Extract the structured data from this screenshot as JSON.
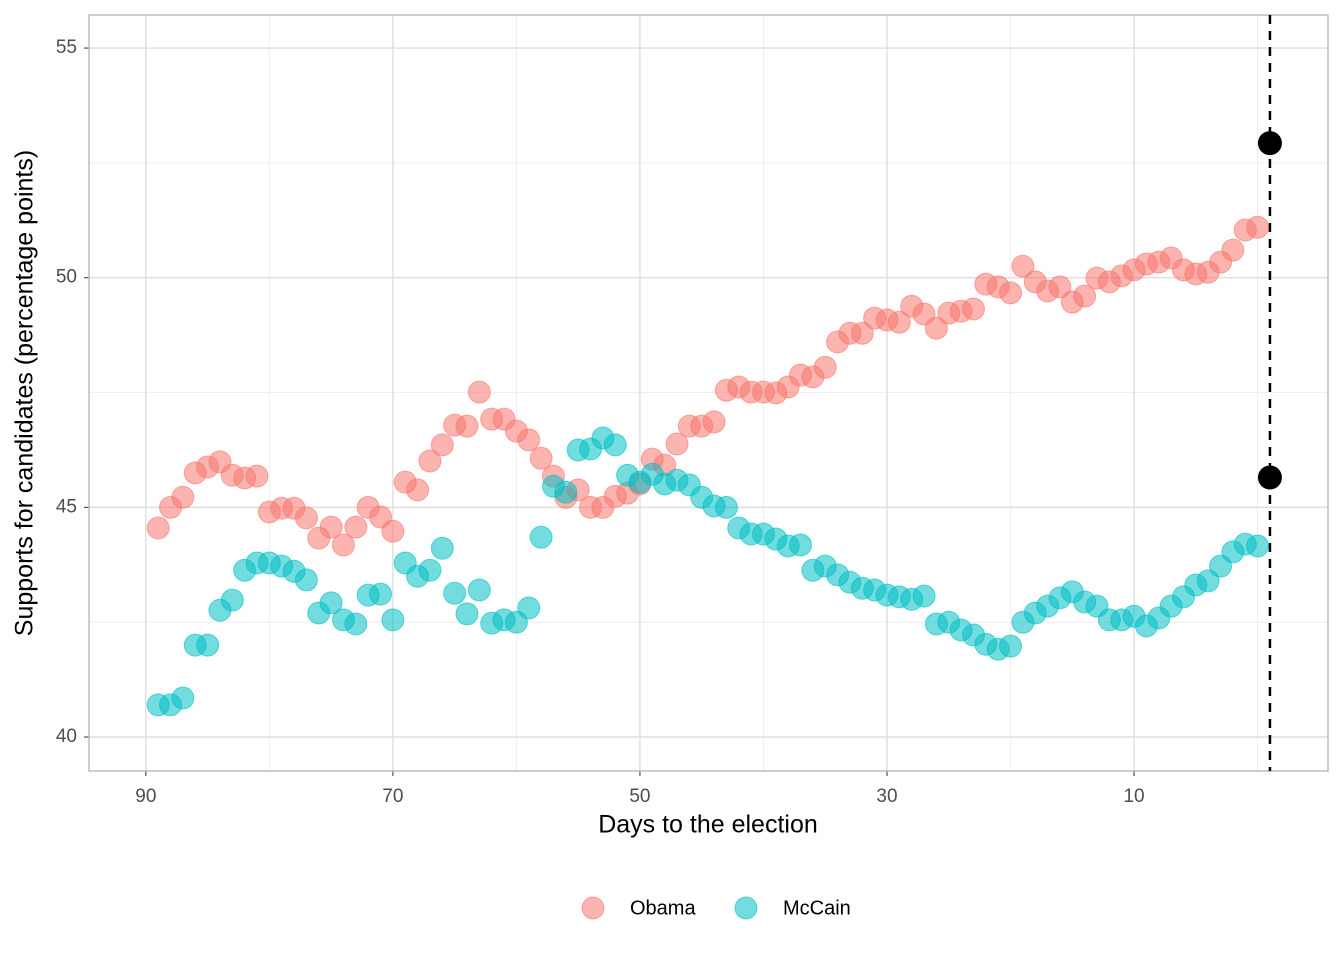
{
  "chart_data": {
    "type": "scatter",
    "x_label": "Days to the election",
    "y_label": "Supports for candidates (percentage points)",
    "x": [
      89,
      88,
      87,
      86,
      85,
      84,
      83,
      82,
      81,
      80,
      79,
      78,
      77,
      76,
      75,
      74,
      73,
      72,
      71,
      70,
      69,
      68,
      67,
      66,
      65,
      64,
      63,
      62,
      61,
      60,
      59,
      58,
      57,
      56,
      55,
      54,
      53,
      52,
      51,
      50,
      49,
      48,
      47,
      46,
      45,
      44,
      43,
      42,
      41,
      40,
      39,
      38,
      37,
      36,
      35,
      34,
      33,
      32,
      31,
      30,
      29,
      28,
      27,
      26,
      25,
      24,
      23,
      22,
      21,
      20,
      19,
      18,
      17,
      16,
      15,
      14,
      13,
      12,
      11,
      10,
      9,
      8,
      7,
      6,
      5,
      4,
      3,
      2,
      1,
      0
    ],
    "series": [
      {
        "name": "Obama",
        "color": "#F8766D",
        "values": [
          44.55,
          45.0,
          45.22,
          45.75,
          45.88,
          45.99,
          45.7,
          45.64,
          45.68,
          44.9,
          44.98,
          44.98,
          44.77,
          44.33,
          44.57,
          44.18,
          44.57,
          45.0,
          44.79,
          44.48,
          45.55,
          45.38,
          46.01,
          46.36,
          46.79,
          46.77,
          47.51,
          46.92,
          46.92,
          46.66,
          46.47,
          46.07,
          45.68,
          45.22,
          45.38,
          45.0,
          45.0,
          45.24,
          45.31,
          45.51,
          46.05,
          45.92,
          46.38,
          46.77,
          46.77,
          46.86,
          47.55,
          47.62,
          47.51,
          47.51,
          47.49,
          47.62,
          47.88,
          47.84,
          48.05,
          48.6,
          48.79,
          48.79,
          49.12,
          49.08,
          49.03,
          49.38,
          49.21,
          48.9,
          49.23,
          49.27,
          49.32,
          49.86,
          49.8,
          49.67,
          50.25,
          49.91,
          49.71,
          49.8,
          49.47,
          49.6,
          49.99,
          49.91,
          50.04,
          50.17,
          50.3,
          50.34,
          50.43,
          50.17,
          50.08,
          50.12,
          50.34,
          50.6,
          51.04,
          51.1
        ]
      },
      {
        "name": "McCain",
        "color": "#00BFC4",
        "values": [
          40.7,
          40.7,
          40.85,
          42.0,
          42.0,
          42.76,
          42.98,
          43.63,
          43.79,
          43.79,
          43.72,
          43.61,
          43.42,
          42.7,
          42.92,
          42.55,
          42.46,
          43.09,
          43.11,
          42.55,
          43.79,
          43.5,
          43.63,
          44.11,
          43.13,
          42.68,
          43.2,
          42.48,
          42.55,
          42.5,
          42.81,
          44.35,
          45.46,
          45.33,
          46.25,
          46.27,
          46.51,
          46.36,
          45.7,
          45.55,
          45.72,
          45.51,
          45.59,
          45.49,
          45.22,
          45.03,
          45.0,
          44.55,
          44.42,
          44.42,
          44.31,
          44.16,
          44.18,
          43.63,
          43.72,
          43.53,
          43.37,
          43.24,
          43.2,
          43.09,
          43.05,
          43.0,
          43.07,
          42.46,
          42.5,
          42.33,
          42.22,
          42.02,
          41.91,
          41.98,
          42.5,
          42.7,
          42.85,
          43.03,
          43.16,
          42.94,
          42.85,
          42.55,
          42.55,
          42.63,
          42.42,
          42.59,
          42.85,
          43.05,
          43.31,
          43.4,
          43.72,
          44.03,
          44.2,
          44.16
        ]
      }
    ],
    "markers": {
      "x": [
        -1,
        -1
      ],
      "values": [
        52.93,
        45.65
      ],
      "color": "#000000"
    },
    "vline": -1,
    "xlim": [
      94.6,
      -5.7
    ],
    "xticks": [
      90,
      70,
      50,
      30,
      10
    ],
    "x_minor_ticks": [
      80,
      60,
      40,
      20,
      0
    ],
    "ylim": [
      39.26,
      55.72
    ],
    "yticks": [
      40,
      45,
      50,
      55
    ],
    "y_minor_ticks": [
      42.5,
      47.5,
      52.5
    ],
    "grid": true,
    "legend": "bottom"
  }
}
